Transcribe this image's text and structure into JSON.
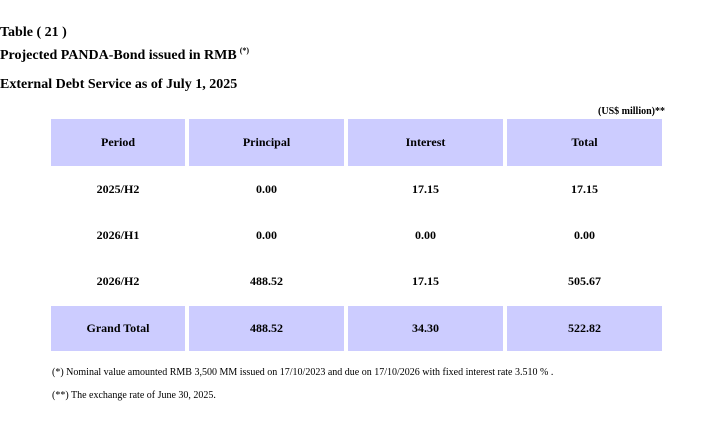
{
  "title": {
    "table_number": "Table ( 21 )",
    "heading": "Projected PANDA-Bond issued in RMB",
    "heading_mark": "(*)",
    "subheading": "External Debt Service as of July 1, 2025"
  },
  "unit_label": "(US$ million)**",
  "table": {
    "headers": [
      "Period",
      "Principal",
      "Interest",
      "Total"
    ],
    "rows": [
      [
        "2025/H2",
        "0.00",
        "17.15",
        "17.15"
      ],
      [
        "2026/H1",
        "0.00",
        "0.00",
        "0.00"
      ],
      [
        "2026/H2",
        "488.52",
        "17.15",
        "505.67"
      ]
    ],
    "grand_total": [
      "Grand Total",
      "488.52",
      "34.30",
      "522.82"
    ]
  },
  "notes": {
    "note1": "(*)  Nominal value amounted RMB 3,500 MM  issued on 17/10/2023 and due on 17/10/2026 with fixed interest rate 3.510 % .",
    "note2": "(**) The exchange rate of June 30, 2025."
  }
}
